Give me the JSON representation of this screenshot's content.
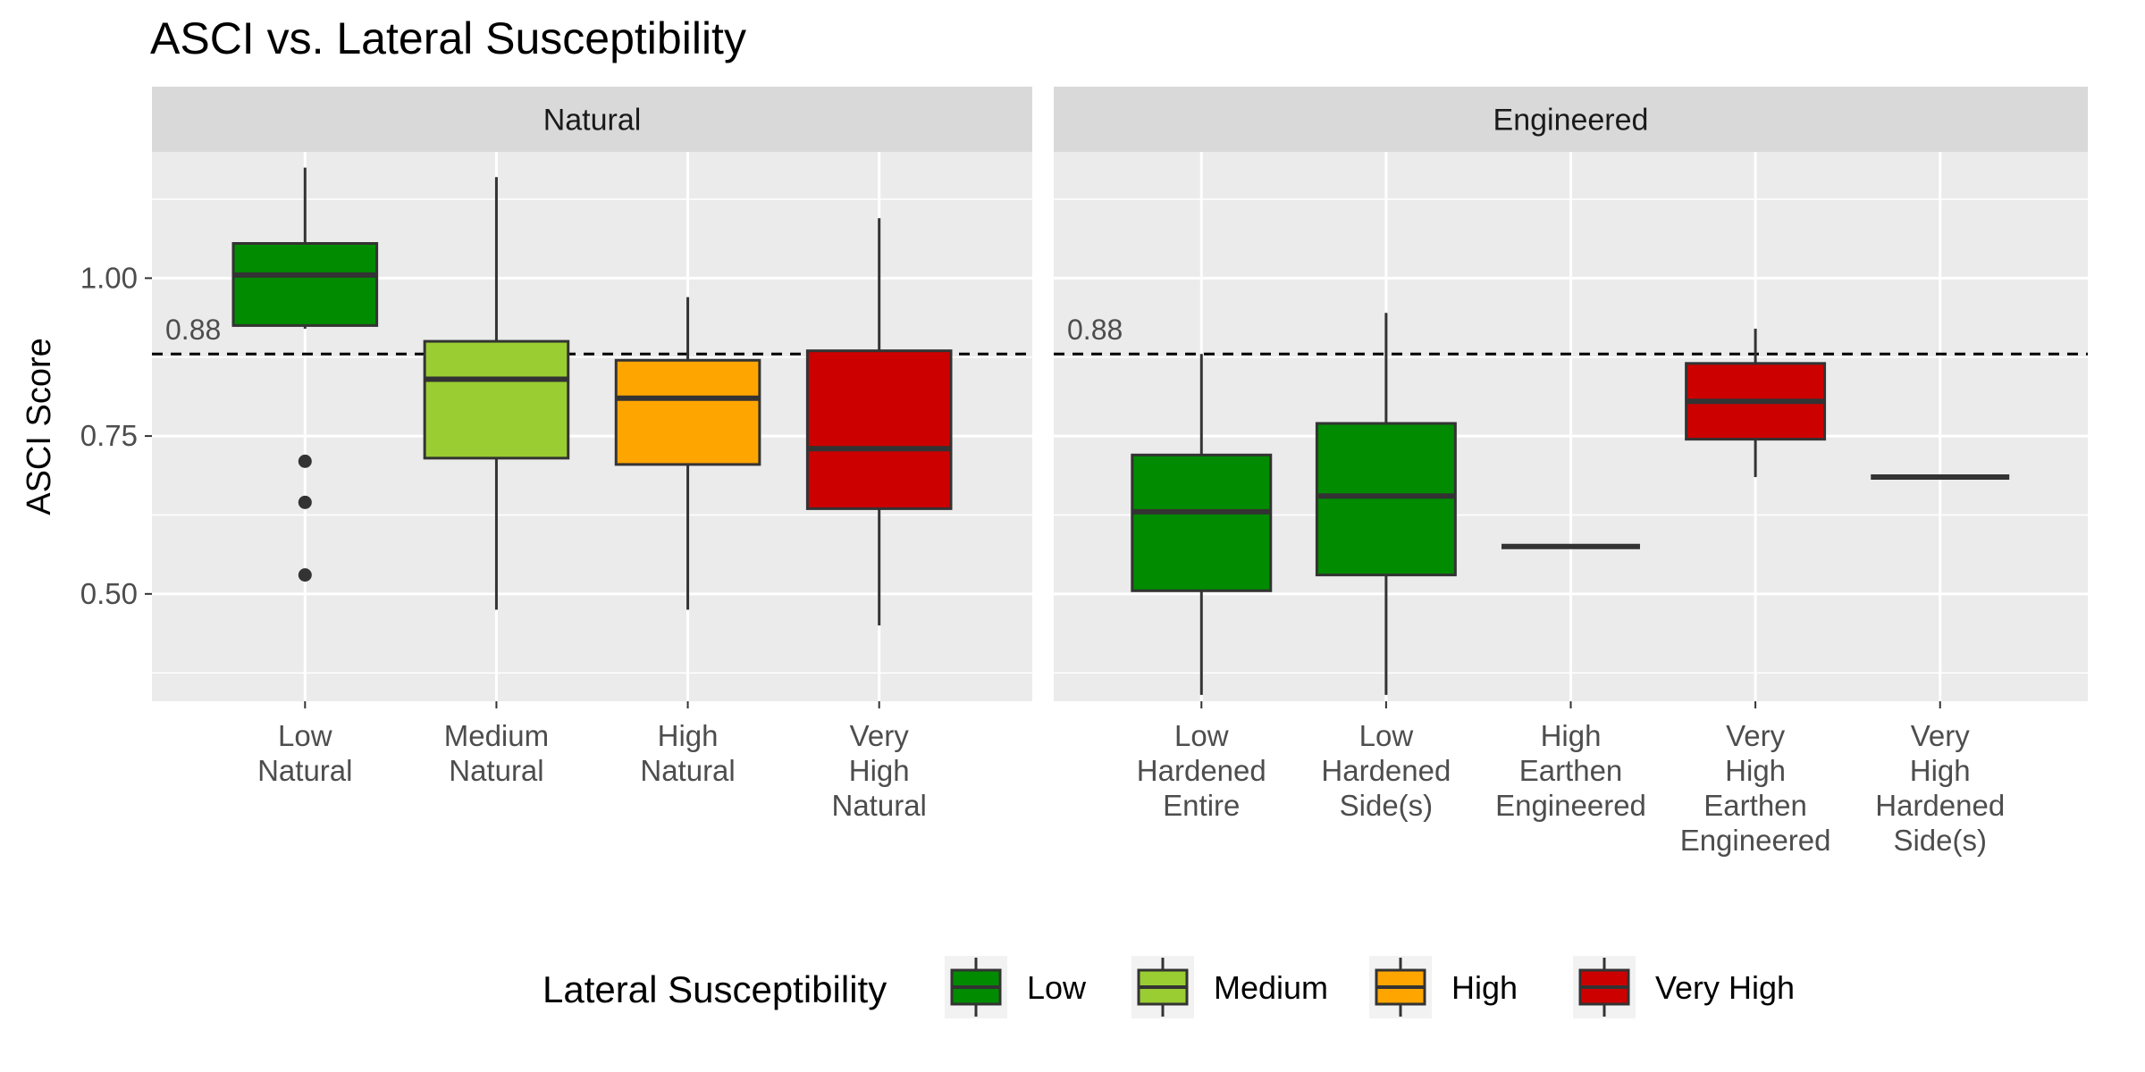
{
  "chart_data": {
    "type": "box",
    "title": "ASCI vs. Lateral Susceptibility",
    "ylabel": "ASCI Score",
    "xlabel": "",
    "ylim": [
      0.33,
      1.2
    ],
    "yticks": [
      0.5,
      0.75,
      1.0
    ],
    "ytick_labels": [
      "0.50",
      "0.75",
      "1.00"
    ],
    "reference_line": {
      "value": 0.88,
      "label": "0.88",
      "style": "dashed"
    },
    "grid": true,
    "legend": {
      "title": "Lateral Susceptibility",
      "position": "bottom",
      "entries": [
        {
          "label": "Low",
          "color": "#008b00"
        },
        {
          "label": "Medium",
          "color": "#9acd32"
        },
        {
          "label": "High",
          "color": "#ffa500"
        },
        {
          "label": "Very High",
          "color": "#cd0000"
        }
      ]
    },
    "panels": [
      {
        "name": "Natural",
        "categories": [
          {
            "label": [
              "Low",
              "Natural"
            ],
            "susceptibility": "Low",
            "whisker_low": 0.92,
            "q1": 0.925,
            "median": 1.005,
            "q3": 1.055,
            "whisker_high": 1.175,
            "outliers": [
              0.71,
              0.645,
              0.53
            ]
          },
          {
            "label": [
              "Medium",
              "Natural"
            ],
            "susceptibility": "Medium",
            "whisker_low": 0.475,
            "q1": 0.715,
            "median": 0.84,
            "q3": 0.9,
            "whisker_high": 1.16,
            "outliers": []
          },
          {
            "label": [
              "High",
              "Natural"
            ],
            "susceptibility": "High",
            "whisker_low": 0.475,
            "q1": 0.705,
            "median": 0.81,
            "q3": 0.87,
            "whisker_high": 0.97,
            "outliers": []
          },
          {
            "label": [
              "Very",
              "High",
              "Natural"
            ],
            "susceptibility": "Very High",
            "whisker_low": 0.45,
            "q1": 0.635,
            "median": 0.73,
            "q3": 0.885,
            "whisker_high": 1.095,
            "outliers": []
          }
        ]
      },
      {
        "name": "Engineered",
        "categories": [
          {
            "label": [
              "Low",
              "Hardened",
              "Entire"
            ],
            "susceptibility": "Low",
            "whisker_low": 0.34,
            "q1": 0.505,
            "median": 0.63,
            "q3": 0.72,
            "whisker_high": 0.88,
            "outliers": []
          },
          {
            "label": [
              "Low",
              "Hardened",
              "Side(s)"
            ],
            "susceptibility": "Low",
            "whisker_low": 0.34,
            "q1": 0.53,
            "median": 0.655,
            "q3": 0.77,
            "whisker_high": 0.945,
            "outliers": []
          },
          {
            "label": [
              "High",
              "Earthen",
              "Engineered"
            ],
            "susceptibility": "High",
            "whisker_low": 0.575,
            "q1": 0.575,
            "median": 0.575,
            "q3": 0.575,
            "whisker_high": 0.575,
            "outliers": []
          },
          {
            "label": [
              "Very",
              "High",
              "Earthen",
              "Engineered"
            ],
            "susceptibility": "Very High",
            "whisker_low": 0.685,
            "q1": 0.745,
            "median": 0.805,
            "q3": 0.865,
            "whisker_high": 0.92,
            "outliers": []
          },
          {
            "label": [
              "Very",
              "High",
              "Hardened",
              "Side(s)"
            ],
            "susceptibility": "Very High",
            "whisker_low": 0.685,
            "q1": 0.685,
            "median": 0.685,
            "q3": 0.685,
            "whisker_high": 0.685,
            "outliers": []
          }
        ]
      }
    ]
  }
}
